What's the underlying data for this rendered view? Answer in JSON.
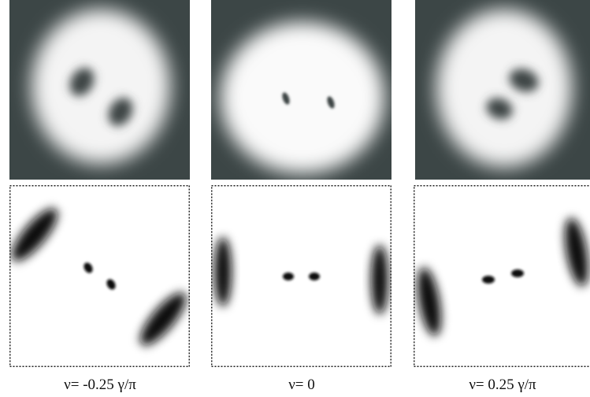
{
  "panels": [
    {
      "label": "ν= -0.25 γ/π"
    },
    {
      "label": "ν= 0"
    },
    {
      "label": "ν= 0.25 γ/π"
    }
  ]
}
